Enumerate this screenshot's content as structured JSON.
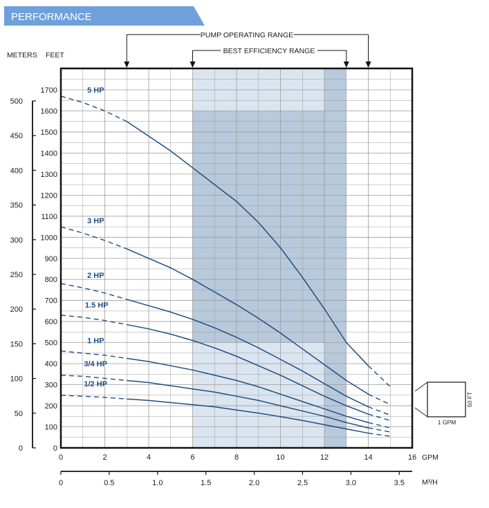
{
  "banner": {
    "title": "PERFORMANCE",
    "color": "#6fa0dc"
  },
  "chart_data": {
    "type": "line",
    "grid": true,
    "x": {
      "unit": "GPM",
      "range": [
        0,
        16
      ],
      "ticks": [
        0,
        2,
        4,
        6,
        8,
        10,
        12,
        14,
        16
      ]
    },
    "x2": {
      "unit": "M³/H",
      "ticks": [
        "0",
        "0.5",
        "1.0",
        "1.5",
        "2.0",
        "2.5",
        "3.0",
        "3.5"
      ],
      "tick_values": [
        0,
        0.5,
        1.0,
        1.5,
        2.0,
        2.5,
        3.0,
        3.5
      ]
    },
    "y_feet": {
      "unit": "FEET",
      "range": [
        0,
        1700
      ],
      "ticks": [
        0,
        100,
        200,
        300,
        400,
        500,
        600,
        700,
        800,
        900,
        1000,
        1100,
        1200,
        1300,
        1400,
        1500,
        1600,
        1700
      ]
    },
    "y_meters": {
      "unit": "METERS",
      "ticks": [
        0,
        50,
        100,
        150,
        200,
        250,
        300,
        350,
        400,
        450,
        500
      ]
    },
    "ranges": {
      "pump_operating": {
        "label": "PUMP OPERATING RANGE",
        "x": [
          3,
          14
        ]
      },
      "best_efficiency": {
        "label": "BEST EFFICIENCY RANGE",
        "x": [
          6,
          13
        ]
      }
    },
    "colors": {
      "curve": "#1e4d80",
      "light_band": "#dbe5f0",
      "dark_band": "#b8c9dc"
    },
    "series": [
      {
        "name": "5 HP",
        "x": [
          0,
          1,
          2,
          3,
          4,
          5,
          6,
          7,
          8,
          9,
          10,
          11,
          12,
          13,
          14,
          15
        ],
        "y": [
          1670,
          1640,
          1600,
          1550,
          1480,
          1410,
          1330,
          1250,
          1170,
          1070,
          950,
          810,
          660,
          500,
          390,
          290
        ]
      },
      {
        "name": "3 HP",
        "x": [
          0,
          1,
          2,
          3,
          4,
          5,
          6,
          7,
          8,
          9,
          10,
          11,
          12,
          13,
          14,
          15
        ],
        "y": [
          1050,
          1020,
          985,
          945,
          900,
          855,
          800,
          740,
          680,
          615,
          545,
          470,
          395,
          320,
          255,
          205
        ]
      },
      {
        "name": "2 HP",
        "x": [
          0,
          1,
          2,
          3,
          4,
          5,
          6,
          7,
          8,
          9,
          10,
          11,
          12,
          13,
          14,
          15
        ],
        "y": [
          780,
          760,
          735,
          705,
          675,
          645,
          610,
          570,
          525,
          475,
          420,
          365,
          305,
          245,
          195,
          155
        ]
      },
      {
        "name": "1.5 HP",
        "x": [
          0,
          1,
          2,
          3,
          4,
          5,
          6,
          7,
          8,
          9,
          10,
          11,
          12,
          13,
          14,
          15
        ],
        "y": [
          630,
          620,
          605,
          585,
          565,
          540,
          510,
          475,
          435,
          390,
          345,
          295,
          245,
          200,
          160,
          130
        ]
      },
      {
        "name": "1 HP",
        "x": [
          0,
          1,
          2,
          3,
          4,
          5,
          6,
          7,
          8,
          9,
          10,
          11,
          12,
          13,
          14,
          15
        ],
        "y": [
          460,
          450,
          440,
          425,
          410,
          390,
          370,
          345,
          320,
          290,
          255,
          220,
          185,
          150,
          120,
          95
        ]
      },
      {
        "name": "3/4 HP",
        "x": [
          0,
          1,
          2,
          3,
          4,
          5,
          6,
          7,
          8,
          9,
          10,
          11,
          12,
          13,
          14,
          15
        ],
        "y": [
          345,
          340,
          330,
          320,
          310,
          295,
          280,
          265,
          245,
          225,
          200,
          175,
          150,
          120,
          95,
          75
        ]
      },
      {
        "name": "1/2 HP",
        "x": [
          0,
          1,
          2,
          3,
          4,
          5,
          6,
          7,
          8,
          9,
          10,
          11,
          12,
          13,
          14,
          15
        ],
        "y": [
          250,
          245,
          240,
          232,
          225,
          215,
          205,
          195,
          180,
          165,
          148,
          130,
          110,
          90,
          70,
          55
        ]
      }
    ],
    "scale_box": {
      "height_label": "50 FT",
      "width_label": "1 GPM"
    }
  }
}
